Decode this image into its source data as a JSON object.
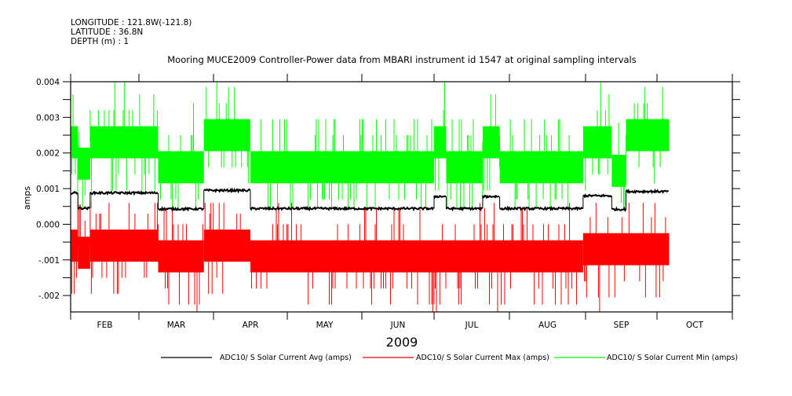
{
  "header": {
    "longitude": "LONGITUDE : 121.8W(-121.8)",
    "latitude": "LATITUDE : 36.8N",
    "depth": "DEPTH (m) : 1"
  },
  "chart_data": {
    "type": "line",
    "title": "Mooring MUCE2009 Controller-Power data from MBARI instrument id 1547 at original sampling intervals",
    "xlabel": "2009",
    "ylabel": "amps",
    "x_unit": "day of year 2009",
    "xlim": [
      "2009-02-01",
      "2009-11-01"
    ],
    "ylim": [
      -0.00246,
      0.004
    ],
    "yticks": [
      0.004,
      0.003,
      0.002,
      0.001,
      0.0,
      -0.001,
      -0.002
    ],
    "ytick_labels": [
      "0.004",
      "0.003",
      "0.002",
      "0.001",
      "0.000",
      "-.001",
      "-.002"
    ],
    "xtick_labels": [
      "FEB",
      "MAR",
      "APR",
      "MAY",
      "JUN",
      "JUL",
      "AUG",
      "SEP",
      "OCT"
    ],
    "month_starts": [
      "2009-02-01",
      "2009-03-01",
      "2009-04-01",
      "2009-05-01",
      "2009-06-01",
      "2009-07-01",
      "2009-08-01",
      "2009-09-01",
      "2009-10-01",
      "2009-11-01"
    ],
    "grid": false,
    "legend_position": "bottom",
    "series": [
      {
        "name": "ADC10/ S Solar Current Avg (amps)",
        "color": "#000000",
        "segments": [
          {
            "start": "2009-02-01",
            "end": "2009-02-04",
            "level": 0.00088
          },
          {
            "start": "2009-02-04",
            "end": "2009-02-09",
            "level": 0.00045
          },
          {
            "start": "2009-02-09",
            "end": "2009-03-09",
            "level": 0.00088
          },
          {
            "start": "2009-03-09",
            "end": "2009-03-28",
            "level": 0.00043
          },
          {
            "start": "2009-03-28",
            "end": "2009-04-16",
            "level": 0.00095
          },
          {
            "start": "2009-04-16",
            "end": "2009-07-01",
            "level": 0.00044
          },
          {
            "start": "2009-07-01",
            "end": "2009-07-06",
            "level": 0.00078
          },
          {
            "start": "2009-07-06",
            "end": "2009-07-21",
            "level": 0.00044
          },
          {
            "start": "2009-07-21",
            "end": "2009-07-28",
            "level": 0.00078
          },
          {
            "start": "2009-07-28",
            "end": "2009-08-31",
            "level": 0.00044
          },
          {
            "start": "2009-08-31",
            "end": "2009-09-12",
            "level": 0.0008
          },
          {
            "start": "2009-09-12",
            "end": "2009-09-18",
            "level": 0.00042
          },
          {
            "start": "2009-09-18",
            "end": "2009-10-06",
            "level": 0.00092
          }
        ]
      },
      {
        "name": "ADC10/ S Solar Current Max (amps)",
        "color": "#ff0000",
        "segments": [
          {
            "start": "2009-02-01",
            "end": "2009-02-04",
            "level": -0.0006
          },
          {
            "start": "2009-02-04",
            "end": "2009-02-09",
            "level": -0.0008
          },
          {
            "start": "2009-02-09",
            "end": "2009-03-09",
            "level": -0.0006
          },
          {
            "start": "2009-03-09",
            "end": "2009-03-28",
            "level": -0.0009
          },
          {
            "start": "2009-03-28",
            "end": "2009-04-16",
            "level": -0.0006
          },
          {
            "start": "2009-04-16",
            "end": "2009-07-01",
            "level": -0.0009
          },
          {
            "start": "2009-07-01",
            "end": "2009-08-31",
            "level": -0.0009
          },
          {
            "start": "2009-08-31",
            "end": "2009-10-06",
            "level": -0.0007
          }
        ],
        "range": [
          -0.00245,
          0.0006
        ]
      },
      {
        "name": "ADC10/ S Solar Current Min (amps)",
        "color": "#00ff00",
        "segments": [
          {
            "start": "2009-02-01",
            "end": "2009-02-04",
            "level": 0.0023
          },
          {
            "start": "2009-02-04",
            "end": "2009-02-09",
            "level": 0.0017
          },
          {
            "start": "2009-02-09",
            "end": "2009-03-09",
            "level": 0.0023
          },
          {
            "start": "2009-03-09",
            "end": "2009-03-28",
            "level": 0.0016
          },
          {
            "start": "2009-03-28",
            "end": "2009-04-16",
            "level": 0.0025
          },
          {
            "start": "2009-04-16",
            "end": "2009-07-01",
            "level": 0.0016
          },
          {
            "start": "2009-07-01",
            "end": "2009-07-06",
            "level": 0.0023
          },
          {
            "start": "2009-07-06",
            "end": "2009-07-21",
            "level": 0.0016
          },
          {
            "start": "2009-07-21",
            "end": "2009-07-28",
            "level": 0.0023
          },
          {
            "start": "2009-07-28",
            "end": "2009-08-31",
            "level": 0.0016
          },
          {
            "start": "2009-08-31",
            "end": "2009-09-12",
            "level": 0.0023
          },
          {
            "start": "2009-09-12",
            "end": "2009-09-18",
            "level": 0.0015
          },
          {
            "start": "2009-09-18",
            "end": "2009-10-06",
            "level": 0.0025
          }
        ],
        "range": [
          0.00045,
          0.004
        ]
      }
    ]
  }
}
